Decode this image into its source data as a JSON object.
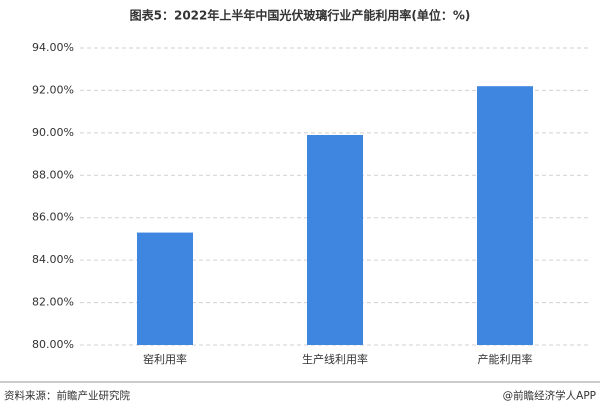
{
  "chart_data": {
    "type": "bar",
    "title": "图表5：2022年上半年中国光伏玻璃行业产能利用率(单位：%)",
    "categories": [
      "窑利用率",
      "生产线利用率",
      "产能利用率"
    ],
    "values": [
      85.3,
      89.9,
      92.2
    ],
    "color": "#3f86e0",
    "ylim": [
      80,
      94
    ],
    "yticks": [
      {
        "value": 80,
        "label": "80.00%"
      },
      {
        "value": 82,
        "label": "82.00%"
      },
      {
        "value": 84,
        "label": "84.00%"
      },
      {
        "value": 86,
        "label": "86.00%"
      },
      {
        "value": 88,
        "label": "88.00%"
      },
      {
        "value": 90,
        "label": "90.00%"
      },
      {
        "value": 92,
        "label": "92.00%"
      },
      {
        "value": 94,
        "label": "94.00%"
      }
    ],
    "grid": true
  },
  "footer": {
    "source": "资料来源：前瞻产业研究院",
    "credit": "@前瞻经济学人APP"
  }
}
